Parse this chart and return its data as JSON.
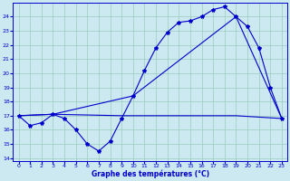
{
  "xlabel": "Graphe des températures (°C)",
  "bg_color": "#cce8f0",
  "line_color": "#0000cc",
  "grid_color": "#99ccbb",
  "xlim_min": -0.5,
  "xlim_max": 23.5,
  "ylim_min": 13.8,
  "ylim_max": 25.0,
  "yticks": [
    14,
    15,
    16,
    17,
    18,
    19,
    20,
    21,
    22,
    23,
    24
  ],
  "xticks": [
    0,
    1,
    2,
    3,
    4,
    5,
    6,
    7,
    8,
    9,
    10,
    11,
    12,
    13,
    14,
    15,
    16,
    17,
    18,
    19,
    20,
    21,
    22,
    23
  ],
  "series_main_x": [
    0,
    1,
    2,
    3,
    4,
    5,
    6,
    7,
    8,
    9,
    10,
    11,
    12,
    13,
    14,
    15,
    16,
    17,
    18,
    19,
    20,
    21,
    22,
    23
  ],
  "series_main_y": [
    17.0,
    16.3,
    16.5,
    17.1,
    16.8,
    16.0,
    15.0,
    14.5,
    15.2,
    16.8,
    18.4,
    20.2,
    21.8,
    22.9,
    23.6,
    23.7,
    24.0,
    24.5,
    24.7,
    24.0,
    23.3,
    21.8,
    19.0,
    16.8
  ],
  "series_diag_x": [
    0,
    3,
    10,
    19,
    23
  ],
  "series_diag_y": [
    17.0,
    17.1,
    18.4,
    24.0,
    16.8
  ],
  "series_flat_x": [
    0,
    3,
    9,
    19,
    23
  ],
  "series_flat_y": [
    17.0,
    17.1,
    17.0,
    17.0,
    16.8
  ]
}
